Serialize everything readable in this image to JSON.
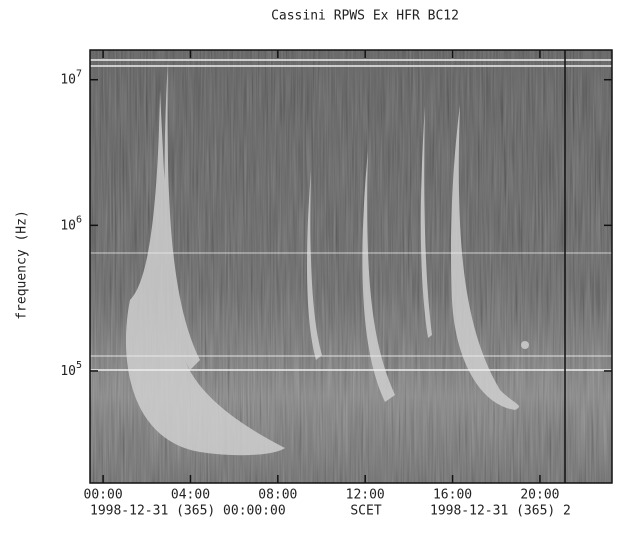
{
  "chart_data": {
    "type": "spectrogram",
    "title": "Cassini RPWS Ex   HFR BC12",
    "ylabel": "frequency (Hz)",
    "log_y": true,
    "ylim": [
      17000,
      16000000
    ],
    "yticks": [
      {
        "value": 100000,
        "label": "10^5"
      },
      {
        "value": 1000000,
        "label": "10^6"
      },
      {
        "value": 10000000,
        "label": "10^7"
      }
    ],
    "xlim": [
      -0.6,
      23.3
    ],
    "xticks": [
      {
        "value": 0,
        "label": "00:00"
      },
      {
        "value": 4,
        "label": "04:00"
      },
      {
        "value": 8,
        "label": "08:00"
      },
      {
        "value": 12,
        "label": "12:00"
      },
      {
        "value": 16,
        "label": "16:00"
      },
      {
        "value": 20,
        "label": "20:00"
      }
    ],
    "xlabel_left": "1998-12-31 (365) 00:00:00",
    "xlabel_center": "SCET",
    "xlabel_right": "1998-12-31 (365) 2"
  }
}
